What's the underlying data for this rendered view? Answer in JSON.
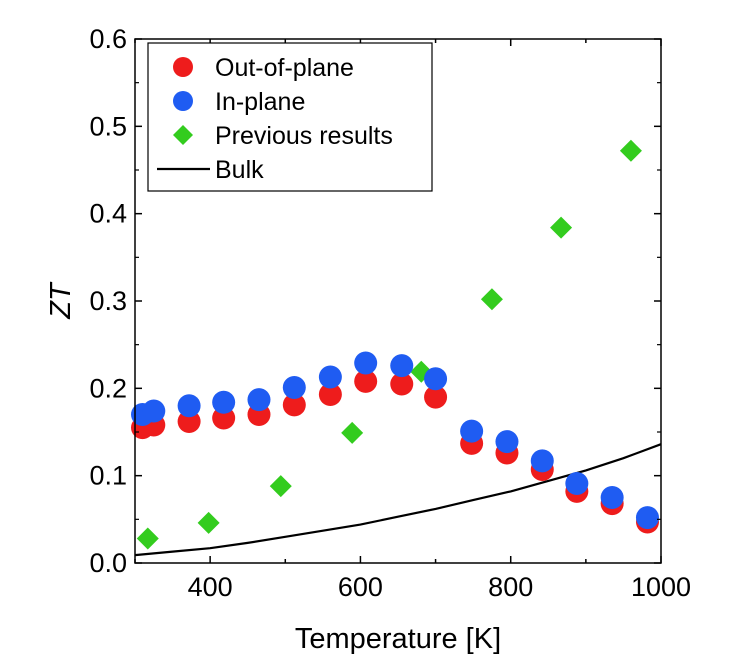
{
  "chart_data": {
    "type": "scatter",
    "xlabel": "Temperature [K]",
    "ylabel": "ZT",
    "xlim": [
      300,
      1000
    ],
    "ylim": [
      0,
      0.6
    ],
    "xticks": [
      400,
      600,
      800,
      1000
    ],
    "yticks": [
      0.0,
      0.1,
      0.2,
      0.3,
      0.4,
      0.5,
      0.6
    ],
    "ytick_labels": [
      "0.0",
      "0.1",
      "0.2",
      "0.3",
      "0.4",
      "0.5",
      "0.6"
    ],
    "grid": false,
    "legend_position": "top-left",
    "series": [
      {
        "name": "Out-of-plane",
        "marker": "circle",
        "color": "#ee1c1c",
        "x": [
          310,
          325,
          372,
          418,
          465,
          512,
          560,
          607,
          655,
          700,
          748,
          795,
          842,
          888,
          935,
          982
        ],
        "y": [
          0.155,
          0.158,
          0.162,
          0.166,
          0.17,
          0.181,
          0.193,
          0.208,
          0.205,
          0.19,
          0.137,
          0.126,
          0.107,
          0.082,
          0.068,
          0.047
        ]
      },
      {
        "name": "In-plane",
        "marker": "circle",
        "color": "#1f5cf2",
        "x": [
          310,
          325,
          372,
          418,
          465,
          512,
          560,
          607,
          655,
          700,
          748,
          795,
          842,
          888,
          935,
          982
        ],
        "y": [
          0.17,
          0.174,
          0.18,
          0.184,
          0.187,
          0.201,
          0.213,
          0.229,
          0.226,
          0.211,
          0.151,
          0.139,
          0.117,
          0.091,
          0.075,
          0.052
        ]
      },
      {
        "name": "Previous results",
        "marker": "diamond",
        "color": "#33cc1e",
        "x": [
          317,
          398,
          494,
          589,
          681,
          775,
          867,
          960
        ],
        "y": [
          0.028,
          0.046,
          0.088,
          0.149,
          0.219,
          0.302,
          0.384,
          0.472
        ]
      },
      {
        "name": "Bulk",
        "marker": "line",
        "color": "#000000",
        "x": [
          300,
          350,
          400,
          450,
          500,
          550,
          600,
          650,
          700,
          750,
          800,
          850,
          900,
          950,
          1000
        ],
        "y": [
          0.009,
          0.013,
          0.017,
          0.023,
          0.03,
          0.037,
          0.044,
          0.053,
          0.062,
          0.072,
          0.082,
          0.094,
          0.106,
          0.12,
          0.136
        ]
      }
    ]
  }
}
